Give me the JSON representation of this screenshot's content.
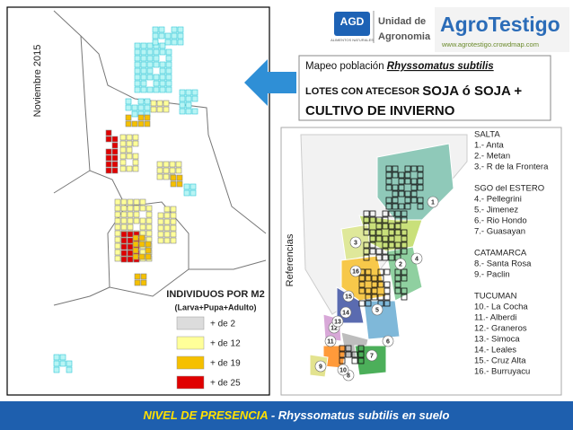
{
  "header": {
    "agd": "AGD",
    "agd_sub": "ALIMENTOS NATURALES",
    "unit": [
      "Unidad de",
      "Agronomia"
    ],
    "brand": "AgroTestigo",
    "url": "www.agrotestigo.crowdmap.com"
  },
  "title": {
    "line1_prefix": "Mapeo población",
    "line1_species": "Rhyssomatus subtilis",
    "line2_prefix": "LOTES CON ATECESOR",
    "line2_emphasis": "SOJA ó SOJA +",
    "line3": "CULTIVO DE INVIERNO"
  },
  "left_panel": {
    "date": "Noviembre 2015",
    "legend": {
      "title": "INDIVIDUOS POR M2",
      "subtitle": "(Larva+Pupa+Adulto)",
      "items": [
        {
          "label": "+ de 2",
          "color": "#dcdcdc"
        },
        {
          "label": "+ de 12",
          "color": "#ffff99"
        },
        {
          "label": "+ de 19",
          "color": "#f5c000"
        },
        {
          "label": "+ de 25",
          "color": "#e00000"
        }
      ]
    }
  },
  "right_panel": {
    "label": "Referencias",
    "groups": [
      {
        "province": "SALTA",
        "items": [
          "1.- Anta",
          "2.- Metan",
          "3.- R de la Frontera"
        ]
      },
      {
        "province": "SGO del ESTERO",
        "items": [
          "4.- Pellegrini",
          "5.- Jimenez",
          "6.- Rio Hondo",
          "7.- Guasayan"
        ]
      },
      {
        "province": "CATAMARCA",
        "items": [
          "8.- Santa Rosa",
          "9.- Paclin"
        ]
      },
      {
        "province": "TUCUMAN",
        "items": [
          "10.- La Cocha",
          "11.- Alberdi",
          "12.- Graneros",
          "13.- Simoca",
          "14.- Leales",
          "15.- Cruz Alta",
          "16.- Burruyacu"
        ]
      }
    ],
    "map_labels": [
      "1",
      "2",
      "3",
      "4",
      "5",
      "6",
      "7",
      "8",
      "9",
      "10",
      "11",
      "12",
      "13",
      "14",
      "15",
      "16"
    ]
  },
  "footer": {
    "highlight": "NIVEL DE PRESENCIA",
    "rest": "- Rhyssomatus subtilis en suelo"
  }
}
